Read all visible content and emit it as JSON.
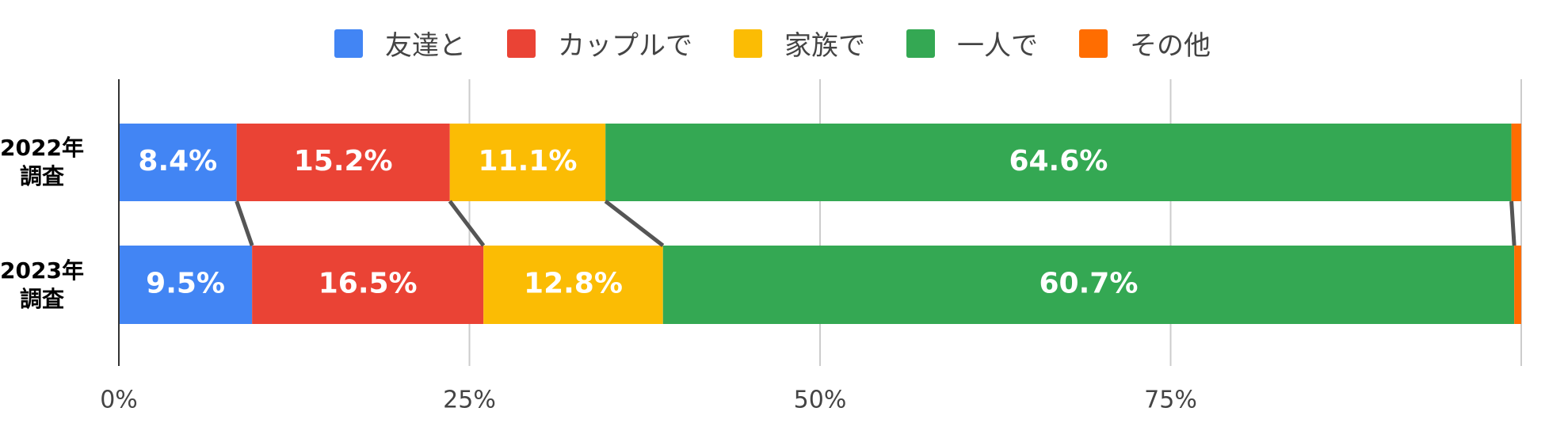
{
  "chart_data": {
    "type": "stacked-bar-horizontal",
    "categories": [
      "2022年\n調査",
      "2023年\n調査"
    ],
    "series": [
      {
        "name": "友達と",
        "color": "#4285f4",
        "values": [
          8.4,
          9.5
        ],
        "value_labels": [
          "8.4%",
          "9.5%"
        ]
      },
      {
        "name": "カップルで",
        "color": "#ea4335",
        "values": [
          15.2,
          16.5
        ],
        "value_labels": [
          "15.2%",
          "16.5%"
        ]
      },
      {
        "name": "家族で",
        "color": "#fbbc04",
        "values": [
          11.1,
          12.8
        ],
        "value_labels": [
          "11.1%",
          "12.8%"
        ]
      },
      {
        "name": "一人で",
        "color": "#34a853",
        "values": [
          64.6,
          60.7
        ],
        "value_labels": [
          "64.6%",
          "60.7%"
        ]
      },
      {
        "name": "その他",
        "color": "#ff6d01",
        "values": [
          0.7,
          0.5
        ],
        "value_labels": [
          null,
          null
        ]
      }
    ],
    "xlim": [
      0,
      100
    ],
    "xticks": [
      {
        "value": 0,
        "label": "0%"
      },
      {
        "value": 25,
        "label": "25%"
      },
      {
        "value": 50,
        "label": "50%"
      },
      {
        "value": 75,
        "label": "75%"
      }
    ],
    "grid": true,
    "legend": "top"
  }
}
